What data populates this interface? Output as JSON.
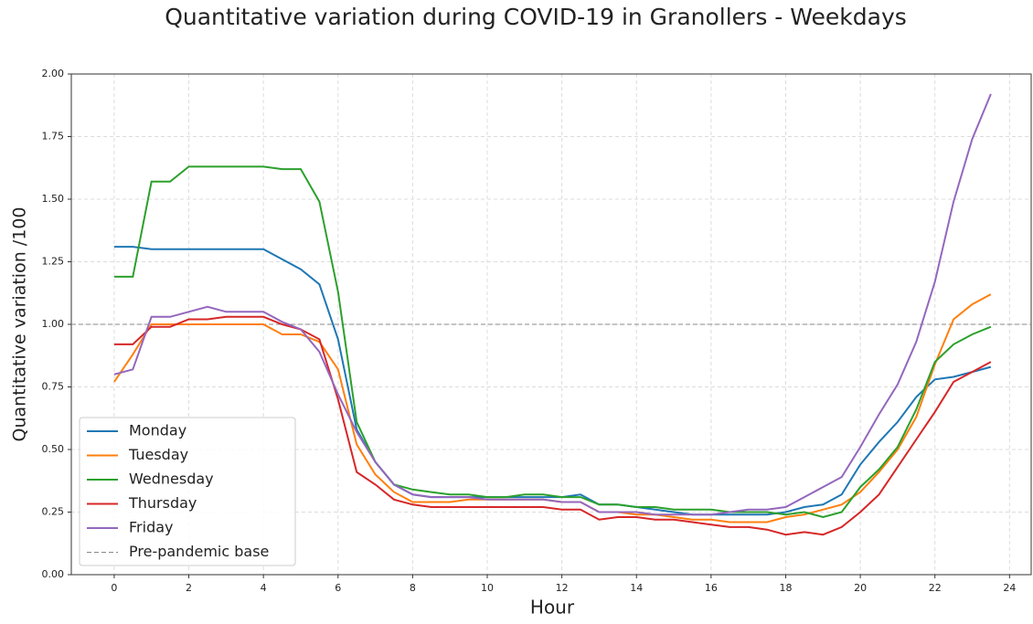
{
  "chart_data": {
    "type": "line",
    "title": "Quantitative variation during COVID-19 in Granollers - Weekdays",
    "x_label": "Hour",
    "y_label": "Quantitative variation /100",
    "x": [
      0,
      0.5,
      1,
      1.5,
      2,
      2.5,
      3,
      3.5,
      4,
      4.5,
      5,
      5.5,
      6,
      6.5,
      7,
      7.5,
      8,
      8.5,
      9,
      9.5,
      10,
      10.5,
      11,
      11.5,
      12,
      12.5,
      13,
      13.5,
      14,
      14.5,
      15,
      15.5,
      16,
      16.5,
      17,
      17.5,
      18,
      18.5,
      19,
      19.5,
      20,
      20.5,
      21,
      21.5,
      22,
      22.5,
      23,
      23.5
    ],
    "series": [
      {
        "name": "Monday",
        "color": "#1f77b4",
        "values": [
          1.31,
          1.31,
          1.3,
          1.3,
          1.3,
          1.3,
          1.3,
          1.3,
          1.3,
          1.26,
          1.22,
          1.16,
          0.94,
          0.58,
          0.45,
          0.36,
          0.32,
          0.31,
          0.31,
          0.31,
          0.31,
          0.31,
          0.31,
          0.31,
          0.31,
          0.32,
          0.28,
          0.28,
          0.27,
          0.26,
          0.25,
          0.24,
          0.24,
          0.24,
          0.24,
          0.24,
          0.25,
          0.27,
          0.28,
          0.32,
          0.44,
          0.53,
          0.61,
          0.71,
          0.78,
          0.79,
          0.81,
          0.83
        ]
      },
      {
        "name": "Tuesday",
        "color": "#ff7f0e",
        "values": [
          0.77,
          0.88,
          1.0,
          1.0,
          1.0,
          1.0,
          1.0,
          1.0,
          1.0,
          0.96,
          0.96,
          0.93,
          0.82,
          0.52,
          0.4,
          0.33,
          0.29,
          0.29,
          0.29,
          0.3,
          0.3,
          0.3,
          0.3,
          0.3,
          0.29,
          0.29,
          0.25,
          0.25,
          0.24,
          0.24,
          0.23,
          0.22,
          0.22,
          0.21,
          0.21,
          0.21,
          0.23,
          0.24,
          0.26,
          0.28,
          0.33,
          0.41,
          0.5,
          0.63,
          0.84,
          1.02,
          1.08,
          1.12
        ]
      },
      {
        "name": "Wednesday",
        "color": "#2ca02c",
        "values": [
          1.19,
          1.19,
          1.57,
          1.57,
          1.63,
          1.63,
          1.63,
          1.63,
          1.63,
          1.62,
          1.62,
          1.49,
          1.13,
          0.61,
          0.45,
          0.36,
          0.34,
          0.33,
          0.32,
          0.32,
          0.31,
          0.31,
          0.32,
          0.32,
          0.31,
          0.31,
          0.28,
          0.28,
          0.27,
          0.27,
          0.26,
          0.26,
          0.26,
          0.25,
          0.25,
          0.25,
          0.24,
          0.25,
          0.23,
          0.25,
          0.35,
          0.42,
          0.51,
          0.66,
          0.85,
          0.92,
          0.96,
          0.99
        ]
      },
      {
        "name": "Thursday",
        "color": "#d62728",
        "values": [
          0.92,
          0.92,
          0.99,
          0.99,
          1.02,
          1.02,
          1.03,
          1.03,
          1.03,
          1.0,
          0.98,
          0.94,
          0.7,
          0.41,
          0.36,
          0.3,
          0.28,
          0.27,
          0.27,
          0.27,
          0.27,
          0.27,
          0.27,
          0.27,
          0.26,
          0.26,
          0.22,
          0.23,
          0.23,
          0.22,
          0.22,
          0.21,
          0.2,
          0.19,
          0.19,
          0.18,
          0.16,
          0.17,
          0.16,
          0.19,
          0.25,
          0.32,
          0.43,
          0.54,
          0.65,
          0.77,
          0.81,
          0.85
        ]
      },
      {
        "name": "Friday",
        "color": "#9467bd",
        "values": [
          0.8,
          0.82,
          1.03,
          1.03,
          1.05,
          1.07,
          1.05,
          1.05,
          1.05,
          1.01,
          0.98,
          0.89,
          0.72,
          0.57,
          0.45,
          0.36,
          0.32,
          0.31,
          0.31,
          0.31,
          0.3,
          0.3,
          0.3,
          0.3,
          0.29,
          0.29,
          0.25,
          0.25,
          0.25,
          0.24,
          0.24,
          0.24,
          0.24,
          0.25,
          0.26,
          0.26,
          0.27,
          0.31,
          0.35,
          0.39,
          0.51,
          0.64,
          0.76,
          0.93,
          1.17,
          1.49,
          1.74,
          1.92
        ]
      }
    ],
    "reference_line": {
      "name": "Pre-pandemic base",
      "value": 1,
      "color": "#888888"
    },
    "xlim": [
      -1.15,
      24.58
    ],
    "ylim": [
      0,
      2
    ],
    "xticks": [
      0,
      2,
      4,
      6,
      8,
      10,
      12,
      14,
      16,
      18,
      20,
      22,
      24
    ],
    "yticks": [
      {
        "value": 0,
        "label": "0.00"
      },
      {
        "value": 0.25,
        "label": "0.25"
      },
      {
        "value": 0.5,
        "label": "0.50"
      },
      {
        "value": 0.75,
        "label": "0.75"
      },
      {
        "value": 1,
        "label": "1.00"
      },
      {
        "value": 1.25,
        "label": "1.25"
      },
      {
        "value": 1.5,
        "label": "1.50"
      },
      {
        "value": 1.75,
        "label": "1.75"
      },
      {
        "value": 2,
        "label": "2.00"
      }
    ],
    "grid": true,
    "legend": "lower left"
  }
}
